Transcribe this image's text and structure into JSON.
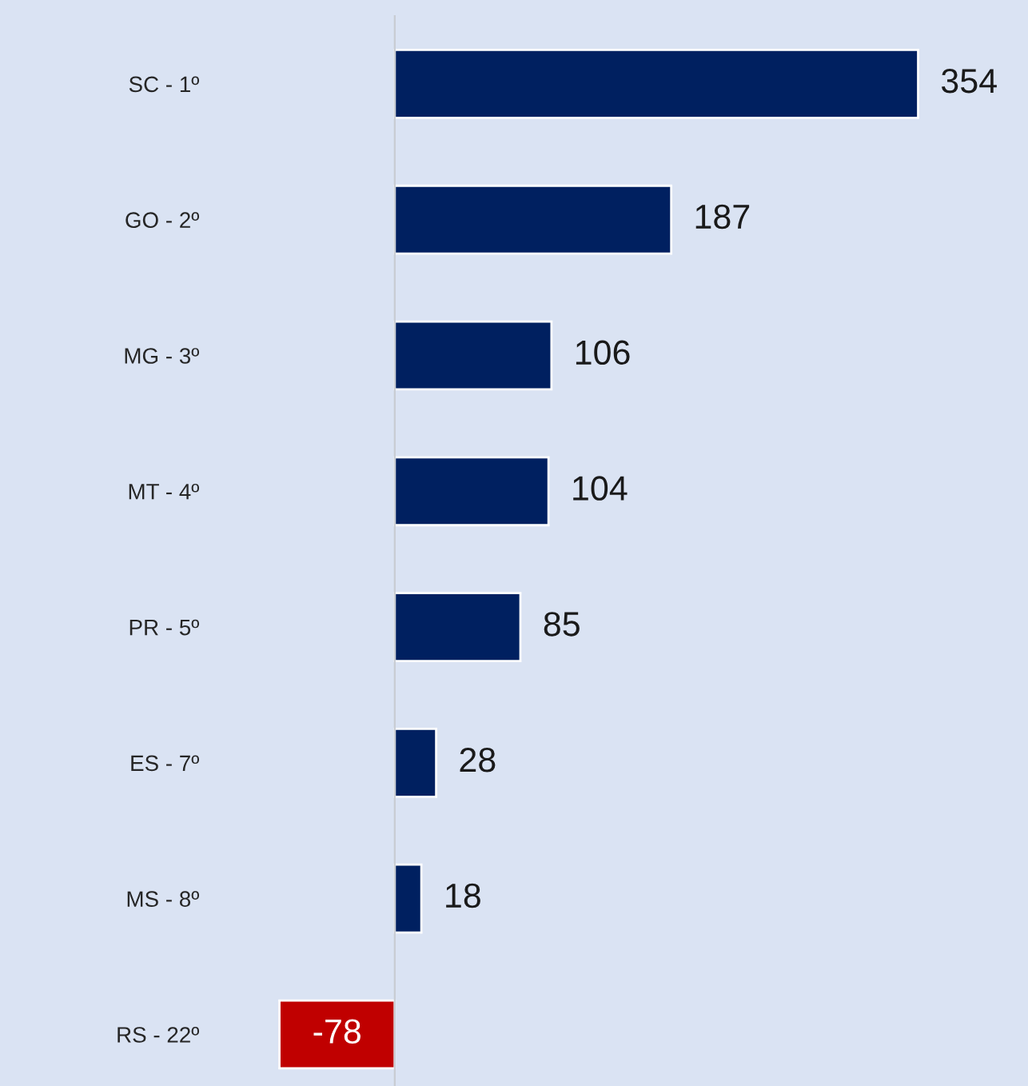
{
  "chart_data": {
    "type": "bar",
    "orientation": "horizontal",
    "categories": [
      "SC - 1º",
      "GO - 2º",
      "MG - 3º",
      "MT - 4º",
      "PR - 5º",
      "ES - 7º",
      "MS - 8º",
      "RS - 22º"
    ],
    "values": [
      354,
      187,
      106,
      104,
      85,
      28,
      18,
      -78
    ],
    "colors": [
      "#002060",
      "#002060",
      "#002060",
      "#002060",
      "#002060",
      "#002060",
      "#002060",
      "#c00000"
    ],
    "data_labels": true,
    "grid": false,
    "legend": false
  }
}
